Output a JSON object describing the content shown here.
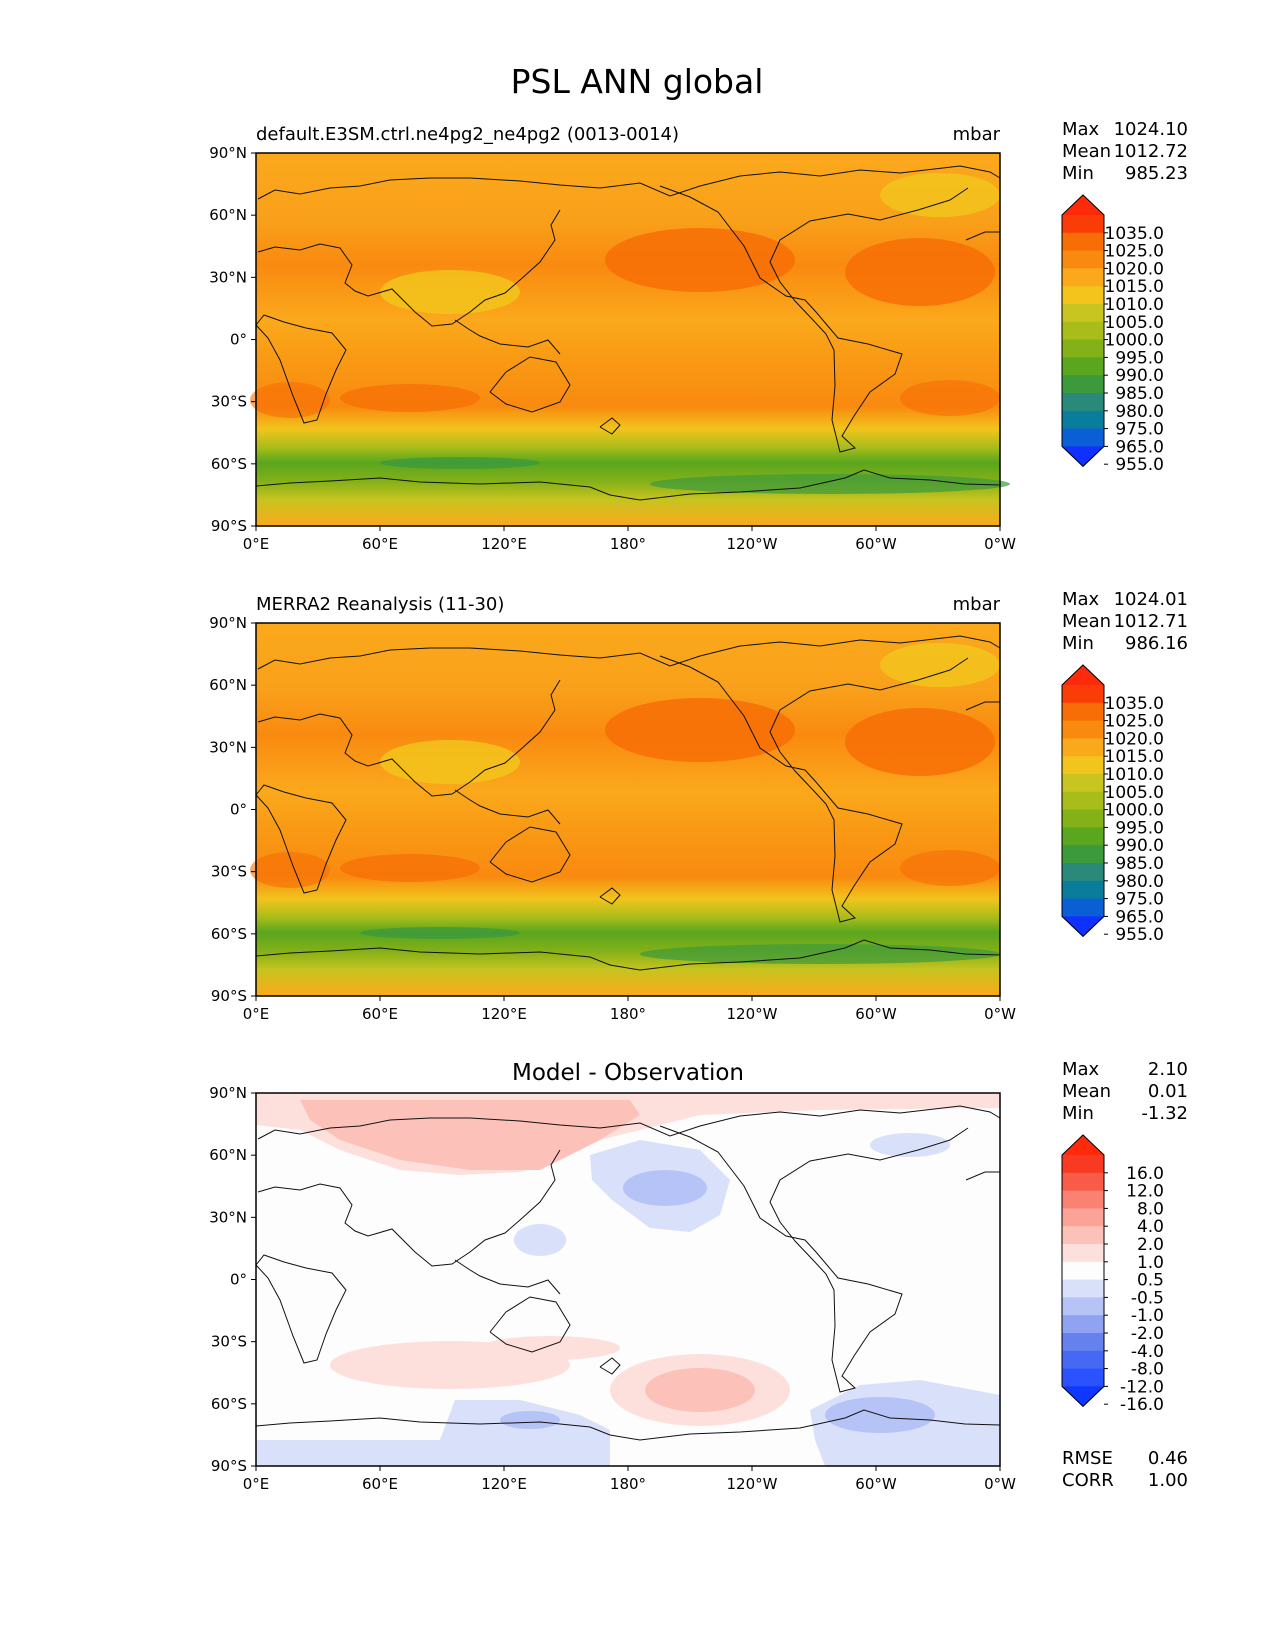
{
  "figure": {
    "title": "PSL ANN global"
  },
  "panels": [
    {
      "title": "default.E3SM.ctrl.ne4pg2_ne4pg2 (0013-0014)",
      "units": "mbar",
      "stats": {
        "labels": [
          "Max",
          "Mean",
          "Min"
        ],
        "values": [
          "1024.10",
          "1012.72",
          "985.23"
        ]
      },
      "colorbar": [
        "1035.0",
        "1025.0",
        "1020.0",
        "1015.0",
        "1010.0",
        "1005.0",
        "1000.0",
        "995.0",
        "990.0",
        "985.0",
        "980.0",
        "975.0",
        "965.0",
        "955.0"
      ],
      "palette": "abs"
    },
    {
      "title": "MERRA2 Reanalysis (11-30)",
      "units": "mbar",
      "stats": {
        "labels": [
          "Max",
          "Mean",
          "Min"
        ],
        "values": [
          "1024.01",
          "1012.71",
          "986.16"
        ]
      },
      "colorbar": [
        "1035.0",
        "1025.0",
        "1020.0",
        "1015.0",
        "1010.0",
        "1005.0",
        "1000.0",
        "995.0",
        "990.0",
        "985.0",
        "980.0",
        "975.0",
        "965.0",
        "955.0"
      ],
      "palette": "abs"
    },
    {
      "title": "Model - Observation",
      "units": "",
      "stats": {
        "labels": [
          "Max",
          "Mean",
          "Min"
        ],
        "values": [
          "2.10",
          "0.01",
          "-1.32"
        ]
      },
      "colorbar": [
        "16.0",
        "12.0",
        "8.0",
        "4.0",
        "2.0",
        "1.0",
        "0.5",
        "-0.5",
        "-1.0",
        "-2.0",
        "-4.0",
        "-8.0",
        "-12.0",
        "-16.0"
      ],
      "palette": "diff",
      "metrics": {
        "labels": [
          "RMSE",
          "CORR"
        ],
        "values": [
          "0.46",
          "1.00"
        ]
      }
    }
  ],
  "axes": {
    "lat_ticks": [
      "90°N",
      "60°N",
      "30°N",
      "0°",
      "30°S",
      "60°S",
      "90°S"
    ],
    "lon_ticks": [
      "0°E",
      "60°E",
      "120°E",
      "180°",
      "120°W",
      "60°W",
      "0°W"
    ]
  },
  "palettes": {
    "abs": [
      "#1030ff",
      "#0a5fd4",
      "#0a7c9c",
      "#2a8a7a",
      "#3c9a3c",
      "#5aa61e",
      "#84b018",
      "#a8bc1a",
      "#c8c420",
      "#f2c41c",
      "#fba91c",
      "#f98a10",
      "#f76e06",
      "#fa3c08",
      "#ff2a0a"
    ],
    "diff": [
      "#1037ff",
      "#2a52ff",
      "#4669f5",
      "#6481ee",
      "#8fa3f1",
      "#b6c3f6",
      "#d9e0fa",
      "#fdfdfd",
      "#fde0dc",
      "#fcc2ba",
      "#faa396",
      "#f98272",
      "#f85b48",
      "#f83a23",
      "#ff2a0a"
    ]
  }
}
